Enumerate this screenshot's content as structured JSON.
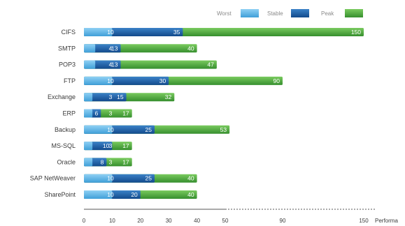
{
  "chart_data": {
    "type": "bar",
    "orientation": "horizontal",
    "stacked": true,
    "categories": [
      "CIFS",
      "SMTP",
      "POP3",
      "FTP",
      "Exchange",
      "ERP",
      "Backup",
      "MS-SQL",
      "Oracle",
      "SAP NetWeaver",
      "SharePoint"
    ],
    "series": [
      {
        "name": "Worst",
        "color": "#5bb5e8",
        "values": [
          10,
          4,
          4,
          10,
          3,
          3,
          10,
          3,
          3,
          10,
          10
        ],
        "labels": [
          "10",
          "4",
          "4",
          "10",
          "3",
          "3",
          "10",
          "3",
          "3",
          "10",
          "10"
        ]
      },
      {
        "name": "Stable",
        "color": "#1c5fa8",
        "values": [
          35,
          13,
          13,
          30,
          15,
          6,
          25,
          10,
          8,
          25,
          20
        ],
        "labels": [
          "35",
          "13",
          "13",
          "30",
          "15",
          "6",
          "25",
          "10",
          "8",
          "25",
          "20"
        ]
      },
      {
        "name": "Peak",
        "color": "#4cae3f",
        "values": [
          150,
          40,
          47,
          90,
          32,
          17,
          53,
          17,
          17,
          40,
          40
        ],
        "labels": [
          "150",
          "40",
          "47",
          "90",
          "32",
          "17",
          "53",
          "17",
          "17",
          "40",
          "40"
        ]
      }
    ],
    "x_ticks": [
      "0",
      "10",
      "20",
      "30",
      "40",
      "50",
      "90",
      "150"
    ],
    "x_tick_values": [
      0,
      10,
      20,
      30,
      40,
      50,
      90,
      150
    ],
    "xlabel": "Performa",
    "ylabel": "",
    "title": "",
    "legend_position": "top-right",
    "grid": false
  }
}
